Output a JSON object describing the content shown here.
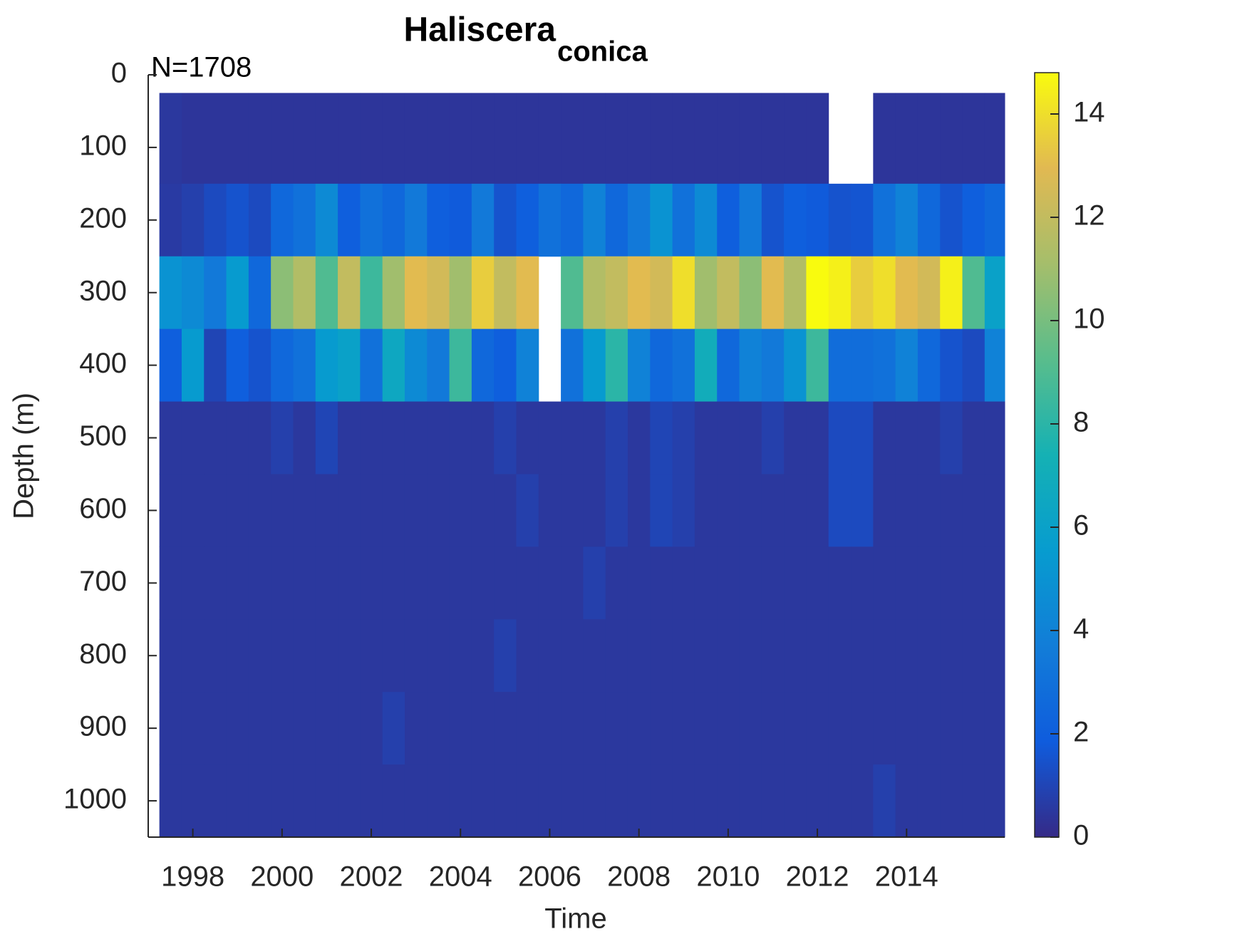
{
  "chart_data": {
    "type": "heatmap",
    "title": "Haliscera",
    "title_subscript": "conica",
    "annotation": "N=1708",
    "xlabel": "Time",
    "ylabel": "Depth (m)",
    "xbins": [
      1997.25,
      1997.75,
      1998.25,
      1998.75,
      1999.25,
      1999.75,
      2000.25,
      2000.75,
      2001.25,
      2001.75,
      2002.25,
      2002.75,
      2003.25,
      2003.75,
      2004.25,
      2004.75,
      2005.25,
      2005.75,
      2006.25,
      2006.75,
      2007.25,
      2007.75,
      2008.25,
      2008.75,
      2009.25,
      2009.75,
      2010.25,
      2010.75,
      2011.25,
      2011.75,
      2012.25,
      2012.75,
      2013.25,
      2013.75,
      2014.25,
      2014.75,
      2015.25,
      2015.75,
      2016.2
    ],
    "ybins": [
      25,
      150,
      250,
      350,
      450,
      550,
      650,
      750,
      850,
      950,
      1050
    ],
    "z": [
      [
        0.5,
        0.4,
        0.4,
        0.4,
        0.4,
        0.4,
        0.4,
        0.4,
        0.4,
        0.4,
        0.4,
        0.4,
        0.4,
        0.4,
        0.4,
        0.4,
        0.4,
        0.4,
        0.4,
        0.4,
        0.4,
        0.4,
        0.4,
        0.4,
        0.4,
        0.4,
        0.4,
        0.4,
        0.4,
        0.4,
        null,
        null,
        0.4,
        0.4,
        0.4,
        0.4,
        0.4,
        0.4
      ],
      [
        0.6,
        0.8,
        1.2,
        1.5,
        1.2,
        2.5,
        3.0,
        4.5,
        2.0,
        3.0,
        2.5,
        3.5,
        2.0,
        1.8,
        3.5,
        1.5,
        2.0,
        3.0,
        2.5,
        4.0,
        2.5,
        3.5,
        5.0,
        3.0,
        4.5,
        2.0,
        3.5,
        1.5,
        2.0,
        1.8,
        1.5,
        1.6,
        3.0,
        4.0,
        2.5,
        1.5,
        2.0,
        2.5
      ],
      [
        5.0,
        4.5,
        3.5,
        5.5,
        2.5,
        10.5,
        11.5,
        9.0,
        12.0,
        8.5,
        11.0,
        13.0,
        12.5,
        11.0,
        13.5,
        12.0,
        13.0,
        null,
        9.0,
        11.5,
        12.0,
        13.0,
        12.5,
        14.0,
        11.0,
        12.0,
        10.5,
        13.0,
        11.5,
        14.8,
        14.5,
        13.5,
        14.0,
        13.0,
        12.5,
        14.5,
        9.0,
        6.0
      ],
      [
        2.0,
        5.5,
        1.0,
        2.0,
        1.5,
        2.5,
        3.0,
        5.5,
        6.0,
        3.0,
        6.5,
        4.5,
        3.5,
        8.5,
        2.5,
        2.0,
        4.0,
        null,
        3.0,
        5.5,
        8.0,
        4.0,
        2.5,
        3.0,
        7.0,
        2.5,
        4.0,
        3.5,
        5.0,
        8.5,
        2.8,
        2.8,
        3.0,
        4.0,
        2.5,
        1.5,
        1.2,
        4.0
      ],
      [
        0.5,
        0.5,
        0.5,
        0.5,
        0.5,
        0.8,
        0.5,
        1.0,
        0.5,
        0.5,
        0.5,
        0.5,
        0.5,
        0.5,
        0.5,
        0.8,
        0.5,
        0.5,
        0.5,
        0.5,
        0.8,
        0.5,
        1.0,
        0.8,
        0.5,
        0.5,
        0.5,
        0.8,
        0.5,
        0.5,
        1.2,
        1.2,
        0.5,
        0.5,
        0.5,
        0.8,
        0.5,
        0.5
      ],
      [
        0.5,
        0.5,
        0.5,
        0.5,
        0.5,
        0.5,
        0.5,
        0.5,
        0.5,
        0.5,
        0.5,
        0.5,
        0.5,
        0.5,
        0.5,
        0.5,
        0.8,
        0.5,
        0.5,
        0.5,
        0.8,
        0.5,
        1.0,
        0.8,
        0.5,
        0.5,
        0.5,
        0.5,
        0.5,
        0.5,
        1.2,
        1.2,
        0.5,
        0.5,
        0.5,
        0.5,
        0.5,
        0.5
      ],
      [
        0.5,
        0.5,
        0.5,
        0.5,
        0.5,
        0.5,
        0.5,
        0.5,
        0.5,
        0.5,
        0.5,
        0.5,
        0.5,
        0.5,
        0.5,
        0.5,
        0.5,
        0.5,
        0.5,
        0.8,
        0.5,
        0.5,
        0.5,
        0.5,
        0.5,
        0.5,
        0.5,
        0.5,
        0.5,
        0.5,
        0.5,
        0.5,
        0.5,
        0.5,
        0.5,
        0.5,
        0.5,
        0.5
      ],
      [
        0.5,
        0.5,
        0.5,
        0.5,
        0.5,
        0.5,
        0.5,
        0.5,
        0.5,
        0.5,
        0.5,
        0.5,
        0.5,
        0.5,
        0.5,
        0.8,
        0.5,
        0.5,
        0.5,
        0.5,
        0.5,
        0.5,
        0.5,
        0.5,
        0.5,
        0.5,
        0.5,
        0.5,
        0.5,
        0.5,
        0.5,
        0.5,
        0.5,
        0.5,
        0.5,
        0.5,
        0.5,
        0.5
      ],
      [
        0.5,
        0.5,
        0.5,
        0.5,
        0.5,
        0.5,
        0.5,
        0.5,
        0.5,
        0.5,
        0.8,
        0.5,
        0.5,
        0.5,
        0.5,
        0.5,
        0.5,
        0.5,
        0.5,
        0.5,
        0.5,
        0.5,
        0.5,
        0.5,
        0.5,
        0.5,
        0.5,
        0.5,
        0.5,
        0.5,
        0.5,
        0.5,
        0.5,
        0.5,
        0.5,
        0.5,
        0.5,
        0.5
      ],
      [
        0.5,
        0.5,
        0.5,
        0.5,
        0.5,
        0.5,
        0.5,
        0.5,
        0.5,
        0.5,
        0.5,
        0.5,
        0.5,
        0.5,
        0.5,
        0.5,
        0.5,
        0.5,
        0.5,
        0.5,
        0.5,
        0.5,
        0.5,
        0.5,
        0.5,
        0.5,
        0.5,
        0.5,
        0.5,
        0.5,
        0.5,
        0.5,
        0.8,
        0.5,
        0.5,
        0.5,
        0.5,
        0.5
      ]
    ],
    "xlim": [
      1997,
      2016.2
    ],
    "xticks": [
      1998,
      2000,
      2002,
      2004,
      2006,
      2008,
      2010,
      2012,
      2014
    ],
    "ylim": [
      0,
      1050
    ],
    "yticks": [
      0,
      100,
      200,
      300,
      400,
      500,
      600,
      700,
      800,
      900,
      1000
    ],
    "y_reversed": true,
    "colormap": "parula",
    "clim": [
      0,
      14.8
    ],
    "colorbar_ticks": [
      0,
      2,
      4,
      6,
      8,
      10,
      12,
      14
    ]
  }
}
